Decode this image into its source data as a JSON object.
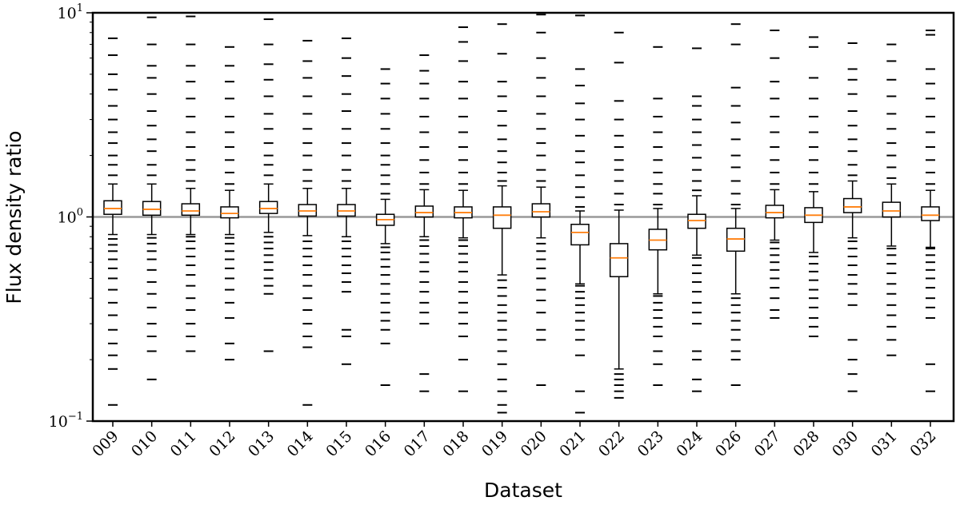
{
  "chart_data": {
    "type": "boxplot",
    "xlabel": "Dataset",
    "ylabel": "Flux density ratio",
    "yscale": "log",
    "ylim": [
      0.1,
      10
    ],
    "yticks": [
      {
        "value": 0.1,
        "base": "10",
        "exp": "−1"
      },
      {
        "value": 1,
        "base": "10",
        "exp": "0"
      },
      {
        "value": 10,
        "base": "10",
        "exp": "1"
      }
    ],
    "reference_line": 1.0,
    "colors": {
      "median": "#ff7f0e",
      "box": "#000000",
      "reference": "#999999"
    },
    "categories": [
      "009",
      "010",
      "011",
      "012",
      "013",
      "014",
      "015",
      "016",
      "017",
      "018",
      "019",
      "020",
      "021",
      "022",
      "023",
      "024",
      "026",
      "027",
      "028",
      "030",
      "031",
      "032"
    ],
    "boxes": [
      {
        "dataset": "009",
        "q1": 1.03,
        "median": 1.1,
        "q3": 1.2,
        "whisker_low": 0.82,
        "whisker_high": 1.45,
        "fliers_low": [
          0.12,
          0.18,
          0.21,
          0.24,
          0.28,
          0.33,
          0.38,
          0.44,
          0.5,
          0.56,
          0.62,
          0.68,
          0.73,
          0.78
        ],
        "fliers_high": [
          1.6,
          1.8,
          2.0,
          2.3,
          2.6,
          3.0,
          3.5,
          4.2,
          5.0,
          6.2,
          7.5
        ]
      },
      {
        "dataset": "010",
        "q1": 1.02,
        "median": 1.09,
        "q3": 1.19,
        "whisker_low": 0.82,
        "whisker_high": 1.45,
        "fliers_low": [
          0.16,
          0.22,
          0.26,
          0.3,
          0.36,
          0.42,
          0.48,
          0.55,
          0.62,
          0.68,
          0.74,
          0.79
        ],
        "fliers_high": [
          1.6,
          1.8,
          2.1,
          2.4,
          2.8,
          3.3,
          4.0,
          4.8,
          5.5,
          7.0,
          9.5
        ]
      },
      {
        "dataset": "011",
        "q1": 1.02,
        "median": 1.07,
        "q3": 1.16,
        "whisker_low": 0.82,
        "whisker_high": 1.38,
        "fliers_low": [
          0.22,
          0.26,
          0.3,
          0.35,
          0.4,
          0.46,
          0.52,
          0.58,
          0.64,
          0.7,
          0.76,
          0.8
        ],
        "fliers_high": [
          1.5,
          1.7,
          1.9,
          2.2,
          2.6,
          3.1,
          3.8,
          4.6,
          5.5,
          7.0,
          9.6
        ]
      },
      {
        "dataset": "012",
        "q1": 0.99,
        "median": 1.04,
        "q3": 1.12,
        "whisker_low": 0.82,
        "whisker_high": 1.35,
        "fliers_low": [
          0.2,
          0.24,
          0.32,
          0.38,
          0.44,
          0.5,
          0.56,
          0.62,
          0.68,
          0.74,
          0.79
        ],
        "fliers_high": [
          1.45,
          1.65,
          1.9,
          2.2,
          2.6,
          3.1,
          3.8,
          4.6,
          5.5,
          6.8
        ]
      },
      {
        "dataset": "013",
        "q1": 1.04,
        "median": 1.1,
        "q3": 1.19,
        "whisker_low": 0.84,
        "whisker_high": 1.45,
        "fliers_low": [
          0.22,
          0.42,
          0.46,
          0.5,
          0.55,
          0.6,
          0.65,
          0.7,
          0.75,
          0.8
        ],
        "fliers_high": [
          1.6,
          1.8,
          2.0,
          2.3,
          2.7,
          3.2,
          3.9,
          4.7,
          5.6,
          7.0,
          9.3
        ]
      },
      {
        "dataset": "014",
        "q1": 1.01,
        "median": 1.07,
        "q3": 1.15,
        "whisker_low": 0.81,
        "whisker_high": 1.38,
        "fliers_low": [
          0.12,
          0.23,
          0.26,
          0.3,
          0.35,
          0.4,
          0.46,
          0.52,
          0.58,
          0.64,
          0.7,
          0.76
        ],
        "fliers_high": [
          1.5,
          1.7,
          2.0,
          2.3,
          2.7,
          3.2,
          3.9,
          4.8,
          5.8,
          7.3
        ]
      },
      {
        "dataset": "015",
        "q1": 1.01,
        "median": 1.07,
        "q3": 1.15,
        "whisker_low": 0.8,
        "whisker_high": 1.38,
        "fliers_low": [
          0.19,
          0.26,
          0.28,
          0.43,
          0.48,
          0.53,
          0.58,
          0.64,
          0.7,
          0.76
        ],
        "fliers_high": [
          1.5,
          1.7,
          2.0,
          2.3,
          2.7,
          3.3,
          4.0,
          4.9,
          6.0,
          7.5
        ]
      },
      {
        "dataset": "016",
        "q1": 0.91,
        "median": 0.97,
        "q3": 1.03,
        "whisker_low": 0.74,
        "whisker_high": 1.22,
        "fliers_low": [
          0.15,
          0.24,
          0.28,
          0.31,
          0.34,
          0.38,
          0.42,
          0.47,
          0.52,
          0.57,
          0.62,
          0.67,
          0.71
        ],
        "fliers_high": [
          1.3,
          1.45,
          1.6,
          1.8,
          2.0,
          2.3,
          2.7,
          3.2,
          3.8,
          4.5,
          5.3
        ]
      },
      {
        "dataset": "017",
        "q1": 1.0,
        "median": 1.05,
        "q3": 1.13,
        "whisker_low": 0.8,
        "whisker_high": 1.36,
        "fliers_low": [
          0.14,
          0.17,
          0.3,
          0.34,
          0.38,
          0.43,
          0.48,
          0.54,
          0.6,
          0.66,
          0.72,
          0.77
        ],
        "fliers_high": [
          1.45,
          1.65,
          1.9,
          2.2,
          2.6,
          3.1,
          3.8,
          4.5,
          5.2,
          6.2
        ]
      },
      {
        "dataset": "018",
        "q1": 0.99,
        "median": 1.05,
        "q3": 1.12,
        "whisker_low": 0.79,
        "whisker_high": 1.35,
        "fliers_low": [
          0.14,
          0.2,
          0.26,
          0.3,
          0.34,
          0.38,
          0.43,
          0.48,
          0.54,
          0.6,
          0.66,
          0.72,
          0.77
        ],
        "fliers_high": [
          1.45,
          1.65,
          1.9,
          2.2,
          2.6,
          3.1,
          3.8,
          4.6,
          5.8,
          7.2,
          8.5
        ]
      },
      {
        "dataset": "019",
        "q1": 0.88,
        "median": 1.02,
        "q3": 1.12,
        "whisker_low": 0.52,
        "whisker_high": 1.42,
        "fliers_low": [
          0.11,
          0.12,
          0.14,
          0.16,
          0.19,
          0.22,
          0.25,
          0.28,
          0.31,
          0.34,
          0.37,
          0.41,
          0.45,
          0.49
        ],
        "fliers_high": [
          1.5,
          1.65,
          1.85,
          2.1,
          2.4,
          2.8,
          3.3,
          3.9,
          4.6,
          6.3,
          8.8
        ]
      },
      {
        "dataset": "020",
        "q1": 1.0,
        "median": 1.06,
        "q3": 1.16,
        "whisker_low": 0.79,
        "whisker_high": 1.4,
        "fliers_low": [
          0.15,
          0.25,
          0.28,
          0.34,
          0.39,
          0.44,
          0.5,
          0.56,
          0.62,
          0.68,
          0.74
        ],
        "fliers_high": [
          1.5,
          1.7,
          2.0,
          2.3,
          2.7,
          3.2,
          3.9,
          4.8,
          6.0,
          8.0,
          9.8
        ]
      },
      {
        "dataset": "021",
        "q1": 0.73,
        "median": 0.84,
        "q3": 0.92,
        "whisker_low": 0.47,
        "whisker_high": 1.07,
        "fliers_low": [
          0.11,
          0.14,
          0.21,
          0.25,
          0.28,
          0.31,
          0.34,
          0.37,
          0.4,
          0.43,
          0.46
        ],
        "fliers_high": [
          1.12,
          1.25,
          1.4,
          1.6,
          1.85,
          2.1,
          2.5,
          3.0,
          3.6,
          4.4,
          5.3,
          9.7
        ]
      },
      {
        "dataset": "022",
        "q1": 0.51,
        "median": 0.63,
        "q3": 0.74,
        "whisker_low": 0.18,
        "whisker_high": 1.08,
        "fliers_low": [
          0.13,
          0.14,
          0.15,
          0.16,
          0.17
        ],
        "fliers_high": [
          1.15,
          1.3,
          1.5,
          1.7,
          1.9,
          2.2,
          2.5,
          3.0,
          3.7,
          5.7,
          8.0
        ]
      },
      {
        "dataset": "023",
        "q1": 0.69,
        "median": 0.77,
        "q3": 0.87,
        "whisker_low": 0.42,
        "whisker_high": 1.1,
        "fliers_low": [
          0.15,
          0.19,
          0.22,
          0.26,
          0.29,
          0.32,
          0.35,
          0.38,
          0.41
        ],
        "fliers_high": [
          1.15,
          1.3,
          1.45,
          1.65,
          1.9,
          2.2,
          2.6,
          3.1,
          3.8,
          6.8
        ]
      },
      {
        "dataset": "024",
        "q1": 0.88,
        "median": 0.96,
        "q3": 1.03,
        "whisker_low": 0.65,
        "whisker_high": 1.27,
        "fliers_low": [
          0.14,
          0.16,
          0.2,
          0.22,
          0.3,
          0.34,
          0.38,
          0.43,
          0.48,
          0.53,
          0.58,
          0.63
        ],
        "fliers_high": [
          1.35,
          1.5,
          1.7,
          1.95,
          2.25,
          2.6,
          3.0,
          3.5,
          3.9,
          6.7
        ]
      },
      {
        "dataset": "026",
        "q1": 0.68,
        "median": 0.78,
        "q3": 0.88,
        "whisker_low": 0.42,
        "whisker_high": 1.1,
        "fliers_low": [
          0.15,
          0.2,
          0.22,
          0.25,
          0.28,
          0.31,
          0.34,
          0.37,
          0.4
        ],
        "fliers_high": [
          1.15,
          1.3,
          1.5,
          1.75,
          2.0,
          2.4,
          2.9,
          3.5,
          4.3,
          7.0,
          8.8
        ]
      },
      {
        "dataset": "027",
        "q1": 0.99,
        "median": 1.05,
        "q3": 1.14,
        "whisker_low": 0.77,
        "whisker_high": 1.36,
        "fliers_low": [
          0.32,
          0.35,
          0.4,
          0.45,
          0.5,
          0.55,
          0.6,
          0.65,
          0.7,
          0.75
        ],
        "fliers_high": [
          1.45,
          1.65,
          1.9,
          2.2,
          2.6,
          3.1,
          3.8,
          4.6,
          6.0,
          8.2
        ]
      },
      {
        "dataset": "028",
        "q1": 0.94,
        "median": 1.02,
        "q3": 1.11,
        "whisker_low": 0.67,
        "whisker_high": 1.33,
        "fliers_low": [
          0.26,
          0.29,
          0.32,
          0.36,
          0.4,
          0.44,
          0.49,
          0.54,
          0.59,
          0.64
        ],
        "fliers_high": [
          1.45,
          1.65,
          1.9,
          2.2,
          2.6,
          3.1,
          3.8,
          4.8,
          6.8,
          7.6
        ]
      },
      {
        "dataset": "030",
        "q1": 1.05,
        "median": 1.12,
        "q3": 1.23,
        "whisker_low": 0.79,
        "whisker_high": 1.5,
        "fliers_low": [
          0.14,
          0.17,
          0.2,
          0.25,
          0.37,
          0.42,
          0.47,
          0.52,
          0.58,
          0.64,
          0.7,
          0.76
        ],
        "fliers_high": [
          1.6,
          1.8,
          2.1,
          2.4,
          2.8,
          3.3,
          4.0,
          4.7,
          5.3,
          7.1
        ]
      },
      {
        "dataset": "031",
        "q1": 1.0,
        "median": 1.07,
        "q3": 1.18,
        "whisker_low": 0.72,
        "whisker_high": 1.45,
        "fliers_low": [
          0.21,
          0.25,
          0.29,
          0.33,
          0.37,
          0.42,
          0.47,
          0.53,
          0.59,
          0.65,
          0.7
        ],
        "fliers_high": [
          1.55,
          1.75,
          2.0,
          2.3,
          2.7,
          3.2,
          3.9,
          4.7,
          5.8,
          7.0
        ]
      },
      {
        "dataset": "032",
        "q1": 0.96,
        "median": 1.02,
        "q3": 1.12,
        "whisker_low": 0.71,
        "whisker_high": 1.35,
        "fliers_low": [
          0.14,
          0.19,
          0.32,
          0.36,
          0.4,
          0.45,
          0.5,
          0.55,
          0.6,
          0.65,
          0.7
        ],
        "fliers_high": [
          1.45,
          1.65,
          1.9,
          2.2,
          2.6,
          3.1,
          3.8,
          4.5,
          5.3,
          7.8,
          8.2
        ]
      }
    ]
  }
}
